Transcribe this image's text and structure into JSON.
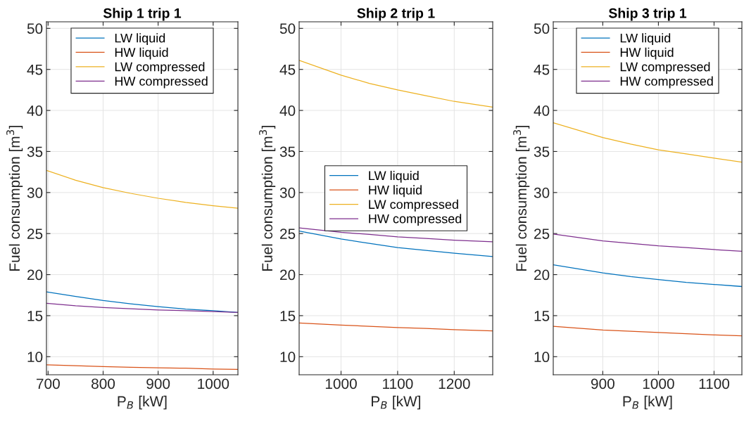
{
  "chart_data": [
    {
      "type": "line",
      "title": "Ship 1 trip 1",
      "xlabel": "P$_{B}$ [kW]",
      "ylabel": "Fuel consumption [m$^{3}$]",
      "x": [
        697,
        750,
        800,
        850,
        900,
        950,
        1000,
        1045
      ],
      "series": [
        {
          "name": "LW liquid",
          "color": "#0072bd",
          "values": [
            17.9,
            17.35,
            16.85,
            16.45,
            16.1,
            15.8,
            15.6,
            15.4
          ]
        },
        {
          "name": "HW liquid",
          "color": "#d95319",
          "values": [
            9.0,
            8.9,
            8.8,
            8.7,
            8.65,
            8.6,
            8.5,
            8.45
          ]
        },
        {
          "name": "LW compressed",
          "color": "#edb120",
          "values": [
            32.7,
            31.5,
            30.6,
            29.9,
            29.3,
            28.8,
            28.4,
            28.1
          ]
        },
        {
          "name": "HW compressed",
          "color": "#7e2f8e",
          "values": [
            16.5,
            16.2,
            16.0,
            15.85,
            15.7,
            15.6,
            15.5,
            15.4
          ]
        }
      ],
      "xlim": [
        697,
        1045
      ],
      "xticks": [
        700,
        800,
        900,
        1000
      ],
      "ylim": [
        7.8,
        50.8
      ],
      "yticks": [
        10,
        15,
        20,
        25,
        30,
        35,
        40,
        45,
        50
      ],
      "grid": true,
      "legend": "top"
    },
    {
      "type": "line",
      "title": "Ship 2 trip 1",
      "xlabel": "P$_{B}$ [kW]",
      "ylabel": "Fuel consumption [m$^{3}$]",
      "x": [
        926,
        1000,
        1050,
        1100,
        1150,
        1200,
        1268
      ],
      "series": [
        {
          "name": "LW liquid",
          "color": "#0072bd",
          "values": [
            25.3,
            24.35,
            23.8,
            23.3,
            22.95,
            22.6,
            22.2
          ]
        },
        {
          "name": "HW liquid",
          "color": "#d95319",
          "values": [
            14.1,
            13.85,
            13.7,
            13.55,
            13.45,
            13.3,
            13.15
          ]
        },
        {
          "name": "LW compressed",
          "color": "#edb120",
          "values": [
            46.1,
            44.3,
            43.3,
            42.5,
            41.8,
            41.1,
            40.4
          ]
        },
        {
          "name": "HW compressed",
          "color": "#7e2f8e",
          "values": [
            25.7,
            25.15,
            24.9,
            24.6,
            24.4,
            24.2,
            24.0
          ]
        }
      ],
      "xlim": [
        926,
        1268
      ],
      "xticks": [
        1000,
        1100,
        1200
      ],
      "ylim": [
        7.8,
        50.8
      ],
      "yticks": [
        10,
        15,
        20,
        25,
        30,
        35,
        40,
        45,
        50
      ],
      "grid": true,
      "legend": "center"
    },
    {
      "type": "line",
      "title": "Ship 3 trip 1",
      "xlabel": "P$_{B}$ [kW]",
      "ylabel": "Fuel consumption [m$^{3}$]",
      "x": [
        811,
        900,
        950,
        1000,
        1050,
        1100,
        1150
      ],
      "series": [
        {
          "name": "LW liquid",
          "color": "#0072bd",
          "values": [
            21.2,
            20.2,
            19.75,
            19.4,
            19.05,
            18.8,
            18.55
          ]
        },
        {
          "name": "HW liquid",
          "color": "#d95319",
          "values": [
            13.7,
            13.25,
            13.1,
            12.95,
            12.8,
            12.65,
            12.55
          ]
        },
        {
          "name": "LW compressed",
          "color": "#edb120",
          "values": [
            38.5,
            36.7,
            35.9,
            35.2,
            34.7,
            34.2,
            33.7
          ]
        },
        {
          "name": "HW compressed",
          "color": "#7e2f8e",
          "values": [
            24.95,
            24.1,
            23.8,
            23.5,
            23.3,
            23.05,
            22.85
          ]
        }
      ],
      "xlim": [
        811,
        1150
      ],
      "xticks": [
        900,
        1000,
        1100
      ],
      "ylim": [
        7.8,
        50.8
      ],
      "yticks": [
        10,
        15,
        20,
        25,
        30,
        35,
        40,
        45,
        50
      ],
      "grid": true,
      "legend": "top"
    }
  ]
}
